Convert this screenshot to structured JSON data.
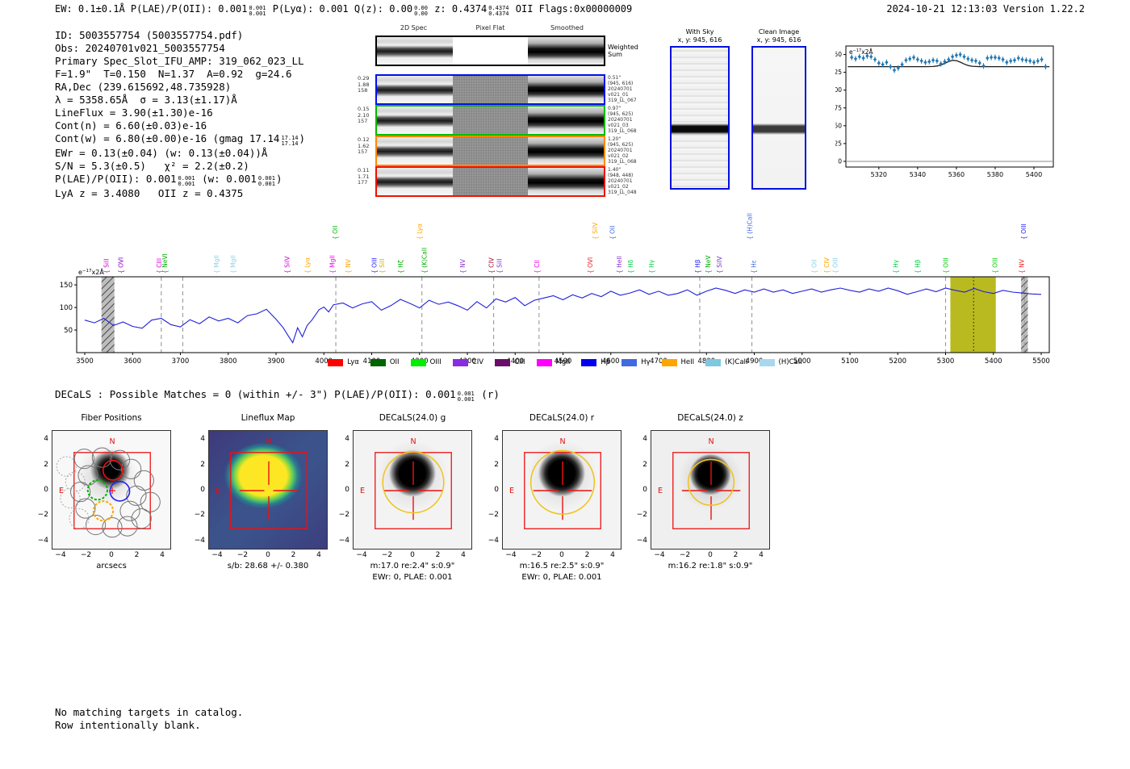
{
  "header": {
    "left_parts": [
      {
        "t": "EW: 0.1±0.1Å   P(LAE)/P(OII): 0.001"
      },
      {
        "sup": "0.001",
        "sub": "0.001"
      },
      {
        "t": "  P(Lyα): 0.001   Q(z): 0.00"
      },
      {
        "sup": "0.00",
        "sub": "0.00"
      },
      {
        "t": "  z: 0.4374"
      },
      {
        "sup": "0.4374",
        "sub": "0.4374"
      },
      {
        "t": " OII    Flags:0x00000009"
      }
    ],
    "right": "2024-10-21 12:13:03  Version 1.22.2"
  },
  "info_lines": [
    [
      {
        "t": "ID: 5003557754 (5003557754.pdf)"
      }
    ],
    [
      {
        "t": "Obs: 20240701v021_5003557754"
      }
    ],
    [
      {
        "t": "Primary Spec_Slot_IFU_AMP: 319_062_023_LL"
      }
    ],
    [
      {
        "t": "F=1.9\"  T=0.150  N=1.37  A=0.92  g=24.6"
      }
    ],
    [
      {
        "t": "RA,Dec (239.615692,48.735928)"
      }
    ],
    [
      {
        "t": "λ = 5358.65Å  σ = 3.13(±1.17)Å"
      }
    ],
    [
      {
        "t": "LineFlux = 3.90(±1.30)e-16"
      }
    ],
    [
      {
        "t": "Cont(n) = 6.60(±0.03)e-16"
      }
    ],
    [
      {
        "t": "Cont(w) = 6.80(±0.00)e-16 (gmag 17.14"
      },
      {
        "sup": "17.14",
        "sub": "17.14"
      },
      {
        "t": ")"
      }
    ],
    [
      {
        "t": "EWr = 0.13(±0.04) (w: 0.13(±0.04))Å"
      }
    ],
    [
      {
        "t": "S/N = 5.3(±0.5)   χ² = 2.2(±0.2)"
      }
    ],
    [
      {
        "t": "P(LAE)/P(OII): 0.001"
      },
      {
        "sup": "0.001",
        "sub": "0.001"
      },
      {
        "t": " (w: 0.001"
      },
      {
        "sup": "0.001",
        "sub": "0.001"
      },
      {
        "t": ")"
      }
    ],
    [
      {
        "t": "LyA z = 3.4080   OII z = 0.4375"
      }
    ]
  ],
  "spec2d": {
    "columns": [
      "2D Spec",
      "Pixel Flat",
      "Smoothed"
    ],
    "weighted_label": [
      "Weighted",
      "Sum"
    ],
    "rows": [
      {
        "color": "#0010ee",
        "left": [
          "0.29",
          "1.88",
          "158"
        ],
        "right": [
          "0.51\"",
          "(945, 616)",
          "20240701",
          "v021_01",
          "319_LL_067"
        ]
      },
      {
        "color": "#00bb00",
        "left": [
          "0.15",
          "2.10",
          "157"
        ],
        "right": [
          "0.97\"",
          "(945, 625)",
          "20240701",
          "v021_03",
          "319_LL_068"
        ]
      },
      {
        "color": "#ff8800",
        "left": [
          "0.12",
          "1.62",
          "157"
        ],
        "right": [
          "1.20\"",
          "(945, 625)",
          "20240701",
          "v021_02",
          "319_LL_068"
        ]
      },
      {
        "color": "#ee1100",
        "left": [
          "0.11",
          "1.71",
          "177"
        ],
        "right": [
          "1.40\"",
          "(948, 448)",
          "20240701",
          "v021_02",
          "319_LL_048"
        ]
      }
    ]
  },
  "sky_panels": [
    {
      "title": "With Sky",
      "subtitle": "x, y: 945, 616"
    },
    {
      "title": "Clean Image",
      "subtitle": "x, y: 945, 616"
    }
  ],
  "chart_data": [
    {
      "id": "zoom_plot",
      "type": "scatter",
      "annotation": "e-17 x2Å",
      "xticks": [
        5320,
        5340,
        5360,
        5380,
        5400
      ],
      "yticks": [
        0,
        25,
        50,
        75,
        100,
        125,
        150
      ],
      "xlim": [
        5303,
        5410
      ],
      "ylim": [
        -8,
        162
      ],
      "x": [
        5306,
        5308,
        5310,
        5312,
        5314,
        5316,
        5318,
        5320,
        5322,
        5324,
        5326,
        5328,
        5330,
        5332,
        5334,
        5336,
        5338,
        5340,
        5342,
        5344,
        5346,
        5348,
        5350,
        5352,
        5354,
        5356,
        5358,
        5360,
        5362,
        5364,
        5366,
        5368,
        5370,
        5372,
        5374,
        5376,
        5378,
        5380,
        5382,
        5384,
        5386,
        5388,
        5390,
        5392,
        5394,
        5396,
        5398,
        5400,
        5402,
        5404,
        5406
      ],
      "y": [
        146,
        144,
        147,
        145,
        148,
        147,
        143,
        138,
        136,
        139,
        133,
        128,
        131,
        136,
        142,
        144,
        146,
        143,
        141,
        139,
        140,
        142,
        141,
        137,
        140,
        143,
        147,
        149,
        150,
        147,
        144,
        142,
        141,
        138,
        134,
        145,
        146,
        146,
        145,
        143,
        139,
        141,
        142,
        145,
        143,
        142,
        141,
        139,
        141,
        143,
        133
      ],
      "yerr": 4,
      "model": {
        "continuum": 133,
        "amplitude": 9,
        "center": 5358.65,
        "sigma": 4
      },
      "marker_color": "#1f77b4",
      "model_color": "#1a1a1a"
    },
    {
      "id": "full_spectrum",
      "type": "line",
      "annotation": "e-17 x2Å",
      "xticks": [
        3500,
        3600,
        3700,
        3800,
        3900,
        4000,
        4100,
        4200,
        4300,
        4400,
        4500,
        4600,
        4700,
        4800,
        4900,
        5000,
        5100,
        5200,
        5300,
        5400,
        5500
      ],
      "yticks": [
        50,
        100,
        150
      ],
      "xlim": [
        3483,
        5517
      ],
      "ylim": [
        0,
        168
      ],
      "line_color": "#2020dd",
      "x": [
        3500,
        3520,
        3540,
        3560,
        3580,
        3600,
        3620,
        3640,
        3660,
        3680,
        3700,
        3720,
        3740,
        3760,
        3780,
        3800,
        3820,
        3840,
        3860,
        3880,
        3900,
        3915,
        3925,
        3935,
        3945,
        3955,
        3965,
        3975,
        3990,
        4000,
        4010,
        4020,
        4040,
        4060,
        4080,
        4100,
        4120,
        4140,
        4160,
        4180,
        4200,
        4220,
        4240,
        4260,
        4280,
        4300,
        4320,
        4340,
        4360,
        4380,
        4400,
        4420,
        4440,
        4460,
        4480,
        4500,
        4520,
        4540,
        4560,
        4580,
        4600,
        4620,
        4640,
        4660,
        4680,
        4700,
        4720,
        4740,
        4760,
        4780,
        4800,
        4820,
        4840,
        4860,
        4880,
        4900,
        4920,
        4940,
        4960,
        4980,
        5000,
        5020,
        5040,
        5060,
        5080,
        5100,
        5120,
        5140,
        5160,
        5180,
        5200,
        5220,
        5240,
        5260,
        5280,
        5300,
        5320,
        5340,
        5360,
        5380,
        5400,
        5420,
        5440,
        5460,
        5480,
        5500
      ],
      "y": [
        72,
        66,
        76,
        60,
        68,
        58,
        54,
        72,
        76,
        62,
        57,
        73,
        64,
        79,
        70,
        76,
        66,
        82,
        86,
        96,
        74,
        55,
        38,
        22,
        55,
        35,
        60,
        72,
        95,
        101,
        90,
        106,
        110,
        99,
        108,
        113,
        94,
        104,
        118,
        109,
        99,
        116,
        107,
        112,
        104,
        94,
        113,
        99,
        119,
        112,
        122,
        104,
        116,
        121,
        126,
        117,
        128,
        121,
        131,
        124,
        136,
        127,
        132,
        139,
        129,
        136,
        127,
        131,
        139,
        127,
        136,
        143,
        138,
        131,
        139,
        134,
        141,
        134,
        139,
        131,
        136,
        141,
        134,
        139,
        143,
        138,
        134,
        141,
        136,
        143,
        137,
        129,
        135,
        141,
        135,
        143,
        138,
        134,
        142,
        135,
        131,
        138,
        134,
        132,
        130,
        129
      ],
      "bands": [
        {
          "x0": 3535,
          "x1": 3562,
          "style": "hatch"
        },
        {
          "x0": 5310,
          "x1": 5405,
          "style": "olive"
        },
        {
          "x0": 5458,
          "x1": 5472,
          "style": "hatch"
        }
      ],
      "dashed_lines": [
        3660,
        3705,
        4025,
        4205,
        4355,
        4450,
        4786,
        4895,
        5300,
        5465
      ],
      "dotted_line": 5358.65,
      "olive_color": "#b9ba20",
      "line_labels": [
        {
          "name": "SiII",
          "wl": 3550,
          "color": "#cc00cc",
          "tier": 0
        },
        {
          "name": "OVI",
          "wl": 3580,
          "color": "#8800cc",
          "tier": 0
        },
        {
          "name": "CIII",
          "wl": 3660,
          "color": "#ee00ee",
          "tier": 0
        },
        {
          "name": "NeVI",
          "wl": 3672,
          "color": "#00aa00",
          "tier": 0
        },
        {
          "name": "MgII",
          "wl": 3780,
          "color": "#8fd0e8",
          "tier": 0
        },
        {
          "name": "MgII",
          "wl": 3815,
          "color": "#8fd0e8",
          "tier": 0
        },
        {
          "name": "SiIV",
          "wl": 3928,
          "color": "#cc00cc",
          "tier": 0
        },
        {
          "name": "Lyα",
          "wl": 3970,
          "color": "#ffa500",
          "tier": 0
        },
        {
          "name": "MgII",
          "wl": 4022,
          "color": "#ee00ee",
          "tier": 0
        },
        {
          "name": "OII",
          "wl": 4028,
          "color": "#00bb00",
          "tier": 1
        },
        {
          "name": "NV",
          "wl": 4055,
          "color": "#ffa500",
          "tier": 0
        },
        {
          "name": "OIII",
          "wl": 4110,
          "color": "#2222ff",
          "tier": 0
        },
        {
          "name": "SiII",
          "wl": 4126,
          "color": "#c8b400",
          "tier": 0
        },
        {
          "name": "Hζ",
          "wl": 4165,
          "color": "#00aa00",
          "tier": 0
        },
        {
          "name": "Lyα",
          "wl": 4205,
          "color": "#ffa500",
          "tier": 1
        },
        {
          "name": "(K)CaII",
          "wl": 4215,
          "color": "#00aa00",
          "tier": 0
        },
        {
          "name": "NV",
          "wl": 4295,
          "color": "#8833cc",
          "tier": 0
        },
        {
          "name": "CIV",
          "wl": 4355,
          "color": "#aa1133",
          "tier": 0
        },
        {
          "name": "SiII",
          "wl": 4372,
          "color": "#7733cc",
          "tier": 0
        },
        {
          "name": "CII",
          "wl": 4450,
          "color": "#ee00ee",
          "tier": 0
        },
        {
          "name": "OVI",
          "wl": 4562,
          "color": "#ee2222",
          "tier": 0
        },
        {
          "name": "SiIV",
          "wl": 4572,
          "color": "#ffa500",
          "tier": 1
        },
        {
          "name": "OII",
          "wl": 4608,
          "color": "#4169e1",
          "tier": 1
        },
        {
          "name": "HeII",
          "wl": 4622,
          "color": "#8833cc",
          "tier": 0
        },
        {
          "name": "Hδ",
          "wl": 4646,
          "color": "#00cc44",
          "tier": 0
        },
        {
          "name": "Hγ",
          "wl": 4690,
          "color": "#00cc44",
          "tier": 0
        },
        {
          "name": "Hβ",
          "wl": 4786,
          "color": "#2222ff",
          "tier": 0
        },
        {
          "name": "NeV",
          "wl": 4808,
          "color": "#00aa00",
          "tier": 0
        },
        {
          "name": "SiIV",
          "wl": 4832,
          "color": "#7733cc",
          "tier": 0
        },
        {
          "name": "(H)CaII",
          "wl": 4895,
          "color": "#4169e1",
          "tier": 1
        },
        {
          "name": "Hε",
          "wl": 4903,
          "color": "#4169e1",
          "tier": 0
        },
        {
          "name": "OII",
          "wl": 5030,
          "color": "#87ceeb",
          "tier": 0
        },
        {
          "name": "CIV",
          "wl": 5056,
          "color": "#ffa500",
          "tier": 0
        },
        {
          "name": "OIII",
          "wl": 5074,
          "color": "#87ceeb",
          "tier": 0
        },
        {
          "name": "Hγ",
          "wl": 5200,
          "color": "#00cc44",
          "tier": 0
        },
        {
          "name": "Hβ",
          "wl": 5246,
          "color": "#00cc44",
          "tier": 0
        },
        {
          "name": "OIII",
          "wl": 5305,
          "color": "#00cc00",
          "tier": 0
        },
        {
          "name": "OIII",
          "wl": 5408,
          "color": "#00cc00",
          "tier": 0
        },
        {
          "name": "NV",
          "wl": 5464,
          "color": "#ee2222",
          "tier": 0
        },
        {
          "name": "OIII",
          "wl": 5468,
          "color": "#2222ff",
          "tier": 1
        }
      ]
    }
  ],
  "legend": [
    {
      "label": "Lyα",
      "color": "#ff0000"
    },
    {
      "label": "OII",
      "color": "#006400"
    },
    {
      "label": "OIII",
      "color": "#00ee00"
    },
    {
      "label": "CIV",
      "color": "#8a2be2"
    },
    {
      "label": "CIII",
      "color": "#6a0d6a"
    },
    {
      "label": "MgII",
      "color": "#ff00ff"
    },
    {
      "label": "Hβ",
      "color": "#0000ee"
    },
    {
      "label": "Hγ",
      "color": "#4169e1"
    },
    {
      "label": "HeII",
      "color": "#ffa500"
    },
    {
      "label": "(K)CaII",
      "color": "#7ec8e3"
    },
    {
      "label": "(H)CaII",
      "color": "#a8d8ef"
    }
  ],
  "decals_line_parts": [
    {
      "t": "DECaLS : Possible Matches = 0 (within +/- 3\")  P(LAE)/P(OII): 0.001"
    },
    {
      "sup": "0.001",
      "sub": "0.001"
    },
    {
      "t": " (r)"
    }
  ],
  "cutouts": {
    "ticks": [
      -4,
      -2,
      0,
      2,
      4
    ],
    "north_label": "N",
    "east_label": "E",
    "panels": [
      {
        "title": "Fiber Positions",
        "type": "fiber",
        "captions": [
          "arcsecs"
        ]
      },
      {
        "title": "Lineflux Map",
        "type": "lineflux",
        "captions": [
          "s/b: 28.68 +/- 0.380"
        ]
      },
      {
        "title": "DECaLS(24.0) g",
        "type": "decals",
        "circle_r": 2.4,
        "captions": [
          "m:17.0  re:2.4\"  s:0.9\"",
          "EWr: 0, PLAE: 0.001"
        ]
      },
      {
        "title": "DECaLS(24.0) r",
        "type": "decals",
        "circle_r": 2.5,
        "captions": [
          "m:16.5  re:2.5\"  s:0.9\"",
          "EWr: 0, PLAE: 0.001"
        ]
      },
      {
        "title": "DECaLS(24.0) z",
        "type": "decals-z",
        "circle_r": 1.8,
        "captions": [
          "m:16.2  re:1.8\"  s:0.9\""
        ]
      }
    ]
  },
  "footer_lines": [
    "No matching targets in catalog.",
    "Row intentionally blank."
  ]
}
